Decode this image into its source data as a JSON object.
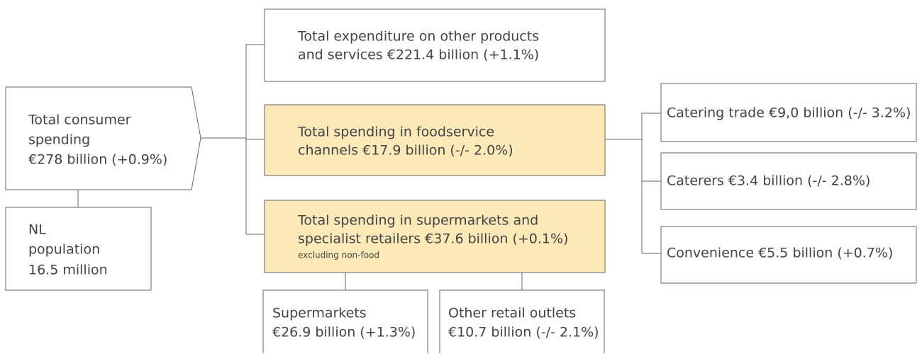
{
  "nodes": [
    {
      "id": "total",
      "lines": [
        "Total consumer",
        "spending",
        "€278 billion (+0.9%)"
      ]
    },
    {
      "id": "population",
      "lines": [
        "NL",
        "population",
        "16.5 million"
      ]
    },
    {
      "id": "other",
      "lines": [
        "Total expenditure on other products",
        "and services €221.4 billion (+1.1%)"
      ]
    },
    {
      "id": "foodservice",
      "lines": [
        "Total spending in foodservice",
        "channels €17.9 billion (-/- 2.0%)"
      ]
    },
    {
      "id": "retail",
      "lines": [
        "Total spending in supermarkets and",
        "specialist retailers €37.6 billion (+0.1%)"
      ],
      "note": "excluding non-food"
    },
    {
      "id": "catering",
      "lines": [
        "Catering trade €9,0 billion (-/- 3.2%)"
      ]
    },
    {
      "id": "caterers",
      "lines": [
        "Caterers €3.4 billion (-/- 2.8%)"
      ]
    },
    {
      "id": "convenience",
      "lines": [
        "Convenience €5.5 billion (+0.7%)"
      ]
    },
    {
      "id": "supermarkets",
      "lines": [
        "Supermarkets",
        "€26.9 billion (+1.3%)"
      ]
    },
    {
      "id": "otherretail",
      "lines": [
        "Other retail outlets",
        "€10.7 billion (-/- 2.1%)"
      ]
    }
  ]
}
